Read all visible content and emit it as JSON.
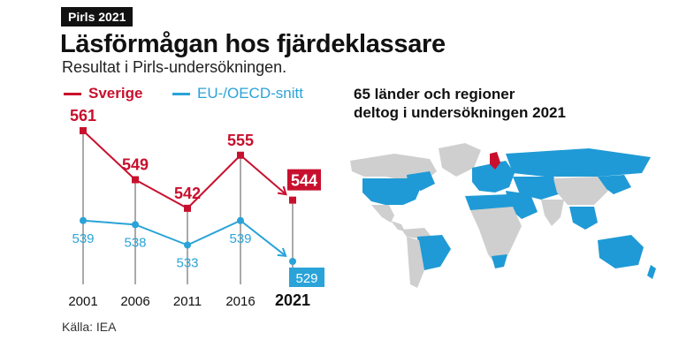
{
  "header": {
    "tag": "Pirls 2021",
    "title": "Läsförmågan hos fjärdeklassare",
    "subtitle": "Resultat i Pirls-undersökningen."
  },
  "legend": {
    "sverige": "Sverige",
    "eu": "EU-/OECD-snitt"
  },
  "map": {
    "caption_line1": "65 länder och regioner",
    "caption_line2": "deltog i undersökningen 2021",
    "participant_color": "#1f9ad6",
    "nonparticipant_color": "#cfcfcf",
    "sweden_color": "#c8102e"
  },
  "source": "Källa: IEA",
  "colors": {
    "sverige": "#c8102e",
    "eu": "#2aa3d8",
    "guide": "#555555"
  },
  "chart_data": {
    "type": "line",
    "categories": [
      "2001",
      "2006",
      "2011",
      "2016",
      "2021"
    ],
    "series": [
      {
        "name": "Sverige",
        "values": [
          561,
          549,
          542,
          555,
          544
        ]
      },
      {
        "name": "EU-/OECD-snitt",
        "values": [
          539,
          538,
          533,
          539,
          529
        ]
      }
    ],
    "highlight_last": true
  }
}
